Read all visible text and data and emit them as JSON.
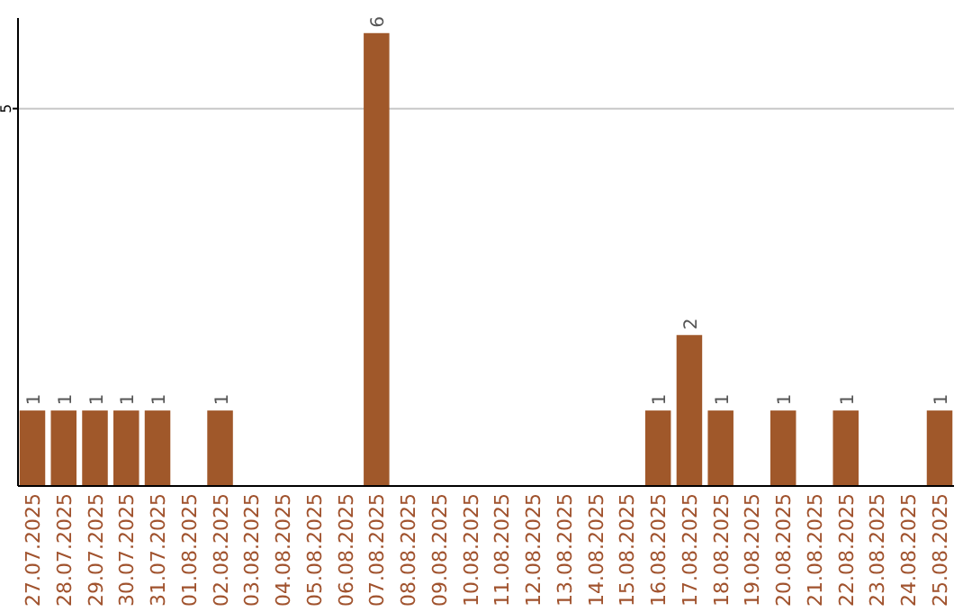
{
  "chart_data": {
    "type": "bar",
    "categories": [
      "27.07.2025",
      "28.07.2025",
      "29.07.2025",
      "30.07.2025",
      "31.07.2025",
      "01.08.2025",
      "02.08.2025",
      "03.08.2025",
      "04.08.2025",
      "05.08.2025",
      "06.08.2025",
      "07.08.2025",
      "08.08.2025",
      "09.08.2025",
      "10.08.2025",
      "11.08.2025",
      "12.08.2025",
      "13.08.2025",
      "14.08.2025",
      "15.08.2025",
      "16.08.2025",
      "17.08.2025",
      "18.08.2025",
      "19.08.2025",
      "20.08.2025",
      "21.08.2025",
      "22.08.2025",
      "23.08.2025",
      "24.08.2025",
      "25.08.2025"
    ],
    "values": [
      1,
      1,
      1,
      1,
      1,
      0,
      1,
      0,
      0,
      0,
      0,
      6,
      0,
      0,
      0,
      0,
      0,
      0,
      0,
      0,
      1,
      2,
      1,
      0,
      1,
      0,
      1,
      0,
      0,
      1
    ],
    "value_labels": [
      "1",
      "1",
      "1",
      "1",
      "1",
      null,
      "1",
      null,
      null,
      null,
      null,
      "6",
      null,
      null,
      null,
      null,
      null,
      null,
      null,
      null,
      "1",
      "2",
      "1",
      null,
      "1",
      null,
      "1",
      null,
      null,
      "1"
    ],
    "color": "#a0582a",
    "ylim": [
      0,
      6.2
    ],
    "yticks": [
      5
    ],
    "grid": "y"
  }
}
